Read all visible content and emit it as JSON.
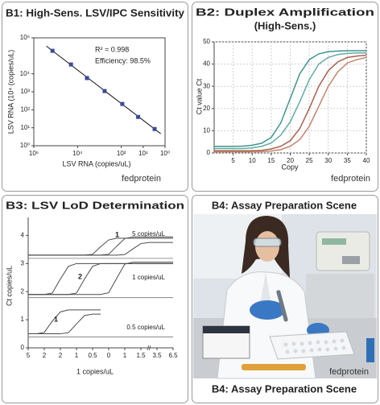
{
  "chart_data": [
    {
      "type": "scatter",
      "title": "B1: High-Sens. LSV/IPC Sensitivity",
      "x_label": "LSV RNA (copies/uL)",
      "y_label": "LSV RNA (10⁴ (copies/uL)",
      "annotations": [
        "R² = 0.998",
        "Efficiency: 98.5%"
      ],
      "watermark": "fedprotein",
      "x": [
        140000,
        20000,
        3700,
        580,
        90,
        17,
        3
      ],
      "y": [
        190000,
        33000,
        5800,
        1100,
        210,
        40,
        8.5
      ],
      "color": "#3b4a9c",
      "xlog": true,
      "ylog": true,
      "xlim": [
        1000000,
        1
      ],
      "ylim": [
        1,
        1000000
      ],
      "xticks": [
        {
          "value": 1000000,
          "label": "10⁶"
        },
        {
          "value": 10000,
          "label": "10⁴"
        },
        {
          "value": 100,
          "label": "10²"
        },
        {
          "value": 10,
          "label": "10¹"
        },
        {
          "value": 1,
          "label": "10⁰"
        }
      ],
      "yticks": [
        {
          "value": 1000000,
          "label": "10⁶"
        },
        {
          "value": 10000,
          "label": "10⁴"
        },
        {
          "value": 1000,
          "label": "10³"
        },
        {
          "value": 100,
          "label": "10²"
        },
        {
          "value": 10,
          "label": "10¹"
        },
        {
          "value": 1,
          "label": "10⁰"
        }
      ]
    },
    {
      "type": "line",
      "title": "B2: Duplex Amplification",
      "subtitle": "(High-Sens.)",
      "x_label": "Copy",
      "y_label": "Ct value Ct",
      "watermark": "fedprotein",
      "grid": true,
      "x": [
        0,
        2.5,
        5,
        7.5,
        10,
        12.5,
        15,
        17.5,
        20,
        22.5,
        25,
        27.5,
        30,
        32.5,
        35,
        37.5,
        40
      ],
      "series": [
        {
          "color": "#3f9490",
          "values": [
            3,
            3,
            3,
            3.1,
            3.5,
            4.4,
            7,
            13.5,
            24.5,
            35.6,
            42,
            44.6,
            45.6,
            45.9,
            46,
            46,
            46
          ]
        },
        {
          "color": "#62aaa6",
          "values": [
            2,
            2,
            2,
            2,
            2.3,
            3,
            4.5,
            8,
            14,
            23,
            33,
            40,
            43,
            44.3,
            44.8,
            45,
            45
          ]
        },
        {
          "color": "#a3604c",
          "values": [
            1,
            1,
            1,
            1,
            1,
            1.2,
            1.8,
            3,
            5.5,
            11,
            20,
            30,
            37,
            41,
            43,
            43.6,
            44
          ]
        },
        {
          "color": "#c4836b",
          "values": [
            0.5,
            0.5,
            0.5,
            0.5,
            0.5,
            0.6,
            0.9,
            1.5,
            3,
            6,
            12,
            21,
            30,
            36.5,
            40.5,
            42,
            43
          ]
        }
      ],
      "xlim": [
        0,
        40
      ],
      "ylim": [
        0,
        50
      ],
      "xticks": [
        5,
        10,
        15,
        20,
        25,
        30,
        35,
        40
      ],
      "yticks": [
        0,
        10,
        20,
        30,
        40,
        50
      ]
    },
    {
      "type": "line",
      "title": "B3: LSV LoD Determination",
      "x_label": "1 copies/uL",
      "y_label": "Ct copies/uL",
      "color": "#4a4a4a",
      "x": [
        0,
        0.5,
        1,
        1.5,
        2,
        2.5,
        3,
        3.5,
        4,
        4.5,
        5,
        5.5,
        6,
        6.5,
        7,
        7.5,
        8,
        8.5,
        9
      ],
      "groups": [
        {
          "label": "5 copies/uL",
          "annotation": "1",
          "series": [
            {
              "values": [
                3.3,
                3.3,
                3.3,
                3.3,
                3.3,
                3.3,
                3.3,
                3.3,
                3.33,
                3.6,
                3.84,
                3.9,
                3.9,
                3.9,
                3.9,
                3.9,
                3.9,
                3.9,
                3.9
              ]
            },
            {
              "values": [
                3.3,
                3.3,
                3.3,
                3.3,
                3.3,
                3.3,
                3.3,
                3.3,
                3.3,
                3.3,
                3.33,
                3.62,
                3.89,
                3.95,
                3.95,
                3.95,
                3.95,
                3.95,
                3.95
              ]
            },
            {
              "values": [
                3.3,
                3.3,
                3.3,
                3.3,
                3.3,
                3.3,
                3.3,
                3.3,
                3.3,
                3.3,
                3.3,
                3.3,
                3.32,
                3.52,
                3.71,
                3.75,
                3.75,
                3.75,
                3.75
              ]
            }
          ]
        },
        {
          "label": "1 copies/uL",
          "annotation": "2",
          "series": [
            {
              "values": [
                1.9,
                1.9,
                1.9,
                1.95,
                2.45,
                2.9,
                3.0,
                3.0,
                3.0,
                3.0,
                3.0,
                3.0,
                3.0,
                3.0,
                3.0,
                3.0,
                3.0,
                3.0,
                3.0
              ]
            },
            {
              "values": [
                1.9,
                1.9,
                1.9,
                1.9,
                1.9,
                1.9,
                1.95,
                2.45,
                2.9,
                3.0,
                3.0,
                3.0,
                3.0,
                3.0,
                3.0,
                3.0,
                3.0,
                3.0,
                3.0
              ]
            },
            {
              "values": [
                1.9,
                1.9,
                1.9,
                1.9,
                1.9,
                1.9,
                1.9,
                1.9,
                1.9,
                1.9,
                1.96,
                2.48,
                2.98,
                3.05,
                3.05,
                3.05,
                3.05,
                3.05,
                3.05
              ]
            }
          ]
        },
        {
          "label": "0.5 copies/uL",
          "annotation": "1",
          "series": [
            {
              "values": [
                0.5,
                0.5,
                0.55,
                0.95,
                1.28,
                1.35,
                1.35,
                1.35,
                1.35,
                1.35,
                null,
                null,
                null,
                null,
                null,
                null,
                null,
                null,
                null
              ]
            },
            {
              "values": [
                0.5,
                0.5,
                0.5,
                0.5,
                0.5,
                0.54,
                0.85,
                1.15,
                1.2,
                1.2,
                null,
                null,
                null,
                null,
                null,
                null,
                null,
                null,
                null
              ]
            }
          ]
        }
      ],
      "xlim": [
        0,
        9
      ],
      "ylim": [
        0,
        4.5
      ],
      "xticks": [
        {
          "value": 0,
          "label": "5"
        },
        {
          "value": 1,
          "label": "2"
        },
        {
          "value": 2,
          "label": "2"
        },
        {
          "value": 3,
          "label": "1"
        },
        {
          "value": 4,
          "label": "0.5"
        },
        {
          "value": 5,
          "label": "0"
        },
        {
          "value": 6,
          "label": "1"
        },
        {
          "value": 7,
          "label": "1.5"
        },
        {
          "value": 8,
          "label": "3.5"
        },
        {
          "value": 9,
          "label": "6.5"
        }
      ],
      "yticks": [
        0,
        1,
        2,
        3,
        4
      ]
    }
  ],
  "photo_panel": {
    "title": "B4: Assay Preparation Scene",
    "caption": "B4: Assay Preparation Scene",
    "watermark": "fedprotein"
  }
}
